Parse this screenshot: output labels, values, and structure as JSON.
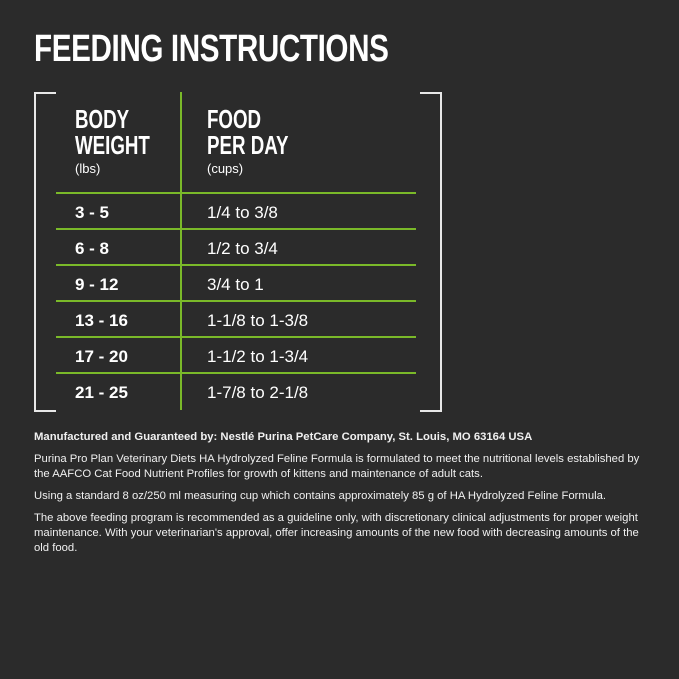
{
  "title": "FEEDING INSTRUCTIONS",
  "colors": {
    "background": "#2b2b2b",
    "accent": "#7ab929",
    "text": "#ffffff"
  },
  "table": {
    "headers": [
      {
        "line1": "BODY",
        "line2": "WEIGHT",
        "unit": "(lbs)"
      },
      {
        "line1": "FOOD",
        "line2": "PER DAY",
        "unit": "(cups)"
      }
    ],
    "rows": [
      {
        "weight": "3 - 5",
        "food": "1/4 to 3/8"
      },
      {
        "weight": "6 - 8",
        "food": "1/2 to 3/4"
      },
      {
        "weight": "9 - 12",
        "food": "3/4 to 1"
      },
      {
        "weight": "13 - 16",
        "food": "1-1/8 to 1-3/8"
      },
      {
        "weight": "17 - 20",
        "food": "1-1/2 to 1-3/4"
      },
      {
        "weight": "21 - 25",
        "food": "1-7/8 to 2-1/8"
      }
    ]
  },
  "footer": {
    "manufacturer": "Manufactured and Guaranteed by: Nestlé Purina PetCare Company, St. Louis, MO 63164 USA",
    "paragraphs": [
      "Purina Pro Plan Veterinary Diets HA Hydrolyzed Feline Formula is formulated to meet the nutritional levels established by the AAFCO Cat Food Nutrient Profiles for growth of kittens and maintenance of adult cats.",
      "Using a standard 8 oz/250 ml measuring cup which contains approximately 85 g of HA Hydrolyzed Feline Formula.",
      "The above feeding program is recommended as a guideline only, with discretionary clinical adjustments for proper weight maintenance. With your veterinarian's approval, offer increasing amounts of the new food with decreasing amounts of the old food."
    ]
  }
}
